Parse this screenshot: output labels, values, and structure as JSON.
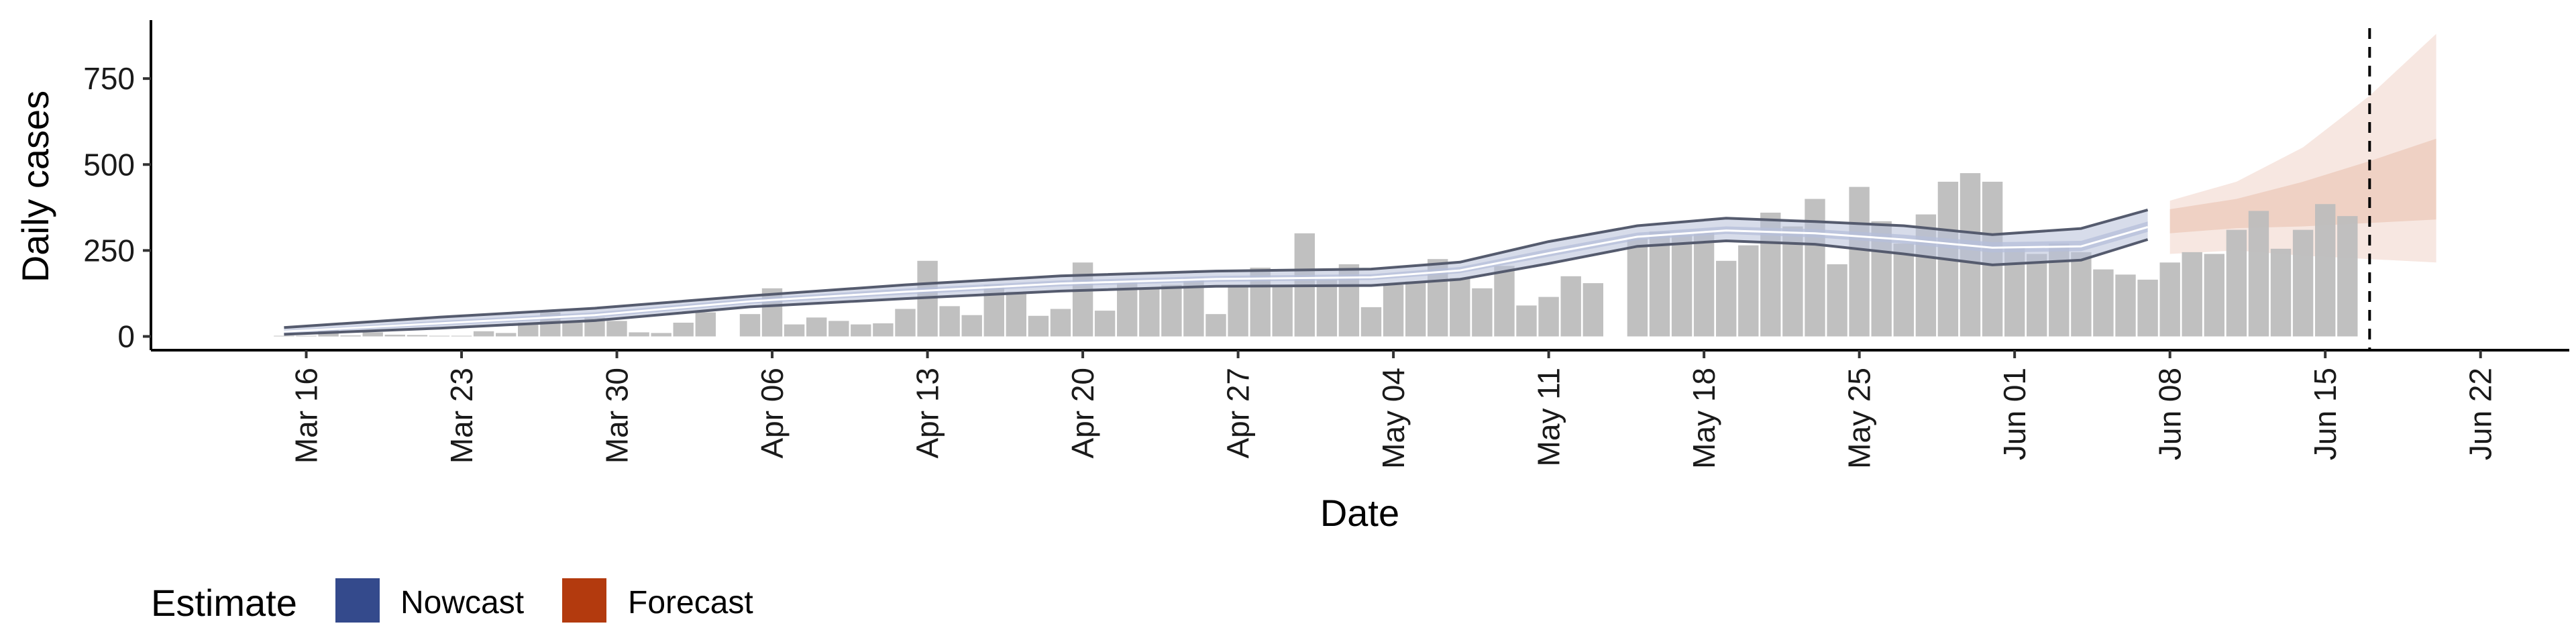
{
  "chart_data": {
    "type": "bar",
    "title": "",
    "xlabel": "Date",
    "ylabel": "Daily cases",
    "ylim": [
      -40,
      920
    ],
    "y_ticks": [
      0,
      250,
      500,
      750
    ],
    "y_tick_labels": [
      "0",
      "250",
      "500",
      "750"
    ],
    "x_ticks": [
      "2020-03-16",
      "2020-03-23",
      "2020-03-30",
      "2020-04-06",
      "2020-04-13",
      "2020-04-20",
      "2020-04-27",
      "2020-05-04",
      "2020-05-11",
      "2020-05-18",
      "2020-05-25",
      "2020-06-01",
      "2020-06-08",
      "2020-06-15",
      "2020-06-22"
    ],
    "x_tick_labels": [
      "Mar 16",
      "Mar 23",
      "Mar 30",
      "Apr 06",
      "Apr 13",
      "Apr 20",
      "Apr 27",
      "May 04",
      "May 11",
      "May 18",
      "May 25",
      "Jun 01",
      "Jun 08",
      "Jun 15",
      "Jun 22"
    ],
    "x_range": [
      "2020-03-09",
      "2020-06-26"
    ],
    "bar_start_date": "2020-03-15",
    "cases": [
      2,
      2,
      20,
      3,
      12,
      5,
      4,
      2,
      2,
      15,
      10,
      40,
      70,
      40,
      55,
      45,
      12,
      10,
      40,
      70,
      0,
      65,
      140,
      35,
      55,
      45,
      35,
      38,
      80,
      220,
      88,
      62,
      150,
      130,
      60,
      80,
      215,
      75,
      160,
      140,
      150,
      170,
      65,
      150,
      200,
      145,
      300,
      165,
      210,
      85,
      150,
      160,
      225,
      170,
      140,
      205,
      90,
      115,
      175,
      155,
      0,
      285,
      305,
      295,
      305,
      220,
      265,
      360,
      320,
      400,
      210,
      435,
      335,
      270,
      355,
      450,
      475,
      450,
      260,
      240,
      270,
      245,
      195,
      180,
      165,
      215,
      245,
      240,
      310,
      365,
      255,
      310,
      385,
      350
    ],
    "nowcast": {
      "dates": [
        "2020-03-15",
        "2020-03-22",
        "2020-03-29",
        "2020-04-05",
        "2020-04-12",
        "2020-04-19",
        "2020-04-26",
        "2020-05-03",
        "2020-05-07",
        "2020-05-11",
        "2020-05-15",
        "2020-05-19",
        "2020-05-23",
        "2020-05-27",
        "2020-05-31",
        "2020-06-04",
        "2020-06-07"
      ],
      "median": [
        14,
        38,
        62,
        102,
        130,
        154,
        167,
        172,
        192,
        242,
        290,
        308,
        300,
        282,
        258,
        262,
        318
      ],
      "lower90": [
        6,
        24,
        46,
        86,
        110,
        132,
        146,
        148,
        166,
        212,
        262,
        278,
        268,
        240,
        208,
        222,
        282
      ],
      "upper90": [
        26,
        56,
        82,
        118,
        150,
        176,
        190,
        196,
        216,
        276,
        322,
        344,
        334,
        322,
        296,
        314,
        368
      ],
      "lower50": [
        10,
        32,
        55,
        95,
        122,
        146,
        159,
        164,
        184,
        232,
        280,
        298,
        288,
        270,
        244,
        248,
        304
      ],
      "upper50": [
        18,
        45,
        70,
        110,
        139,
        163,
        176,
        181,
        202,
        254,
        302,
        320,
        312,
        296,
        274,
        278,
        334
      ]
    },
    "forecast": {
      "dates": [
        "2020-06-08",
        "2020-06-11",
        "2020-06-14",
        "2020-06-17",
        "2020-06-20"
      ],
      "median": [
        335,
        360,
        395,
        425,
        455
      ],
      "lower90": [
        240,
        250,
        235,
        225,
        215
      ],
      "upper90": [
        395,
        450,
        550,
        700,
        880
      ],
      "lower50": [
        300,
        315,
        320,
        330,
        340
      ],
      "upper50": [
        370,
        400,
        450,
        510,
        575
      ]
    },
    "vline_date": "2020-06-17",
    "legend": {
      "title": "Estimate",
      "position": "bottom",
      "items": [
        {
          "label": "Nowcast",
          "color": "#344a8c"
        },
        {
          "label": "Forecast",
          "color": "#b33a0e"
        }
      ]
    },
    "colors": {
      "bar": "#bdbdbd",
      "nowcast_band": "#b6bfd9",
      "nowcast_line": "#555b6e",
      "forecast_band_outer": "#f7e7e1",
      "forecast_band_inner": "#efd1c4",
      "axis": "#000000"
    },
    "grid": false
  }
}
